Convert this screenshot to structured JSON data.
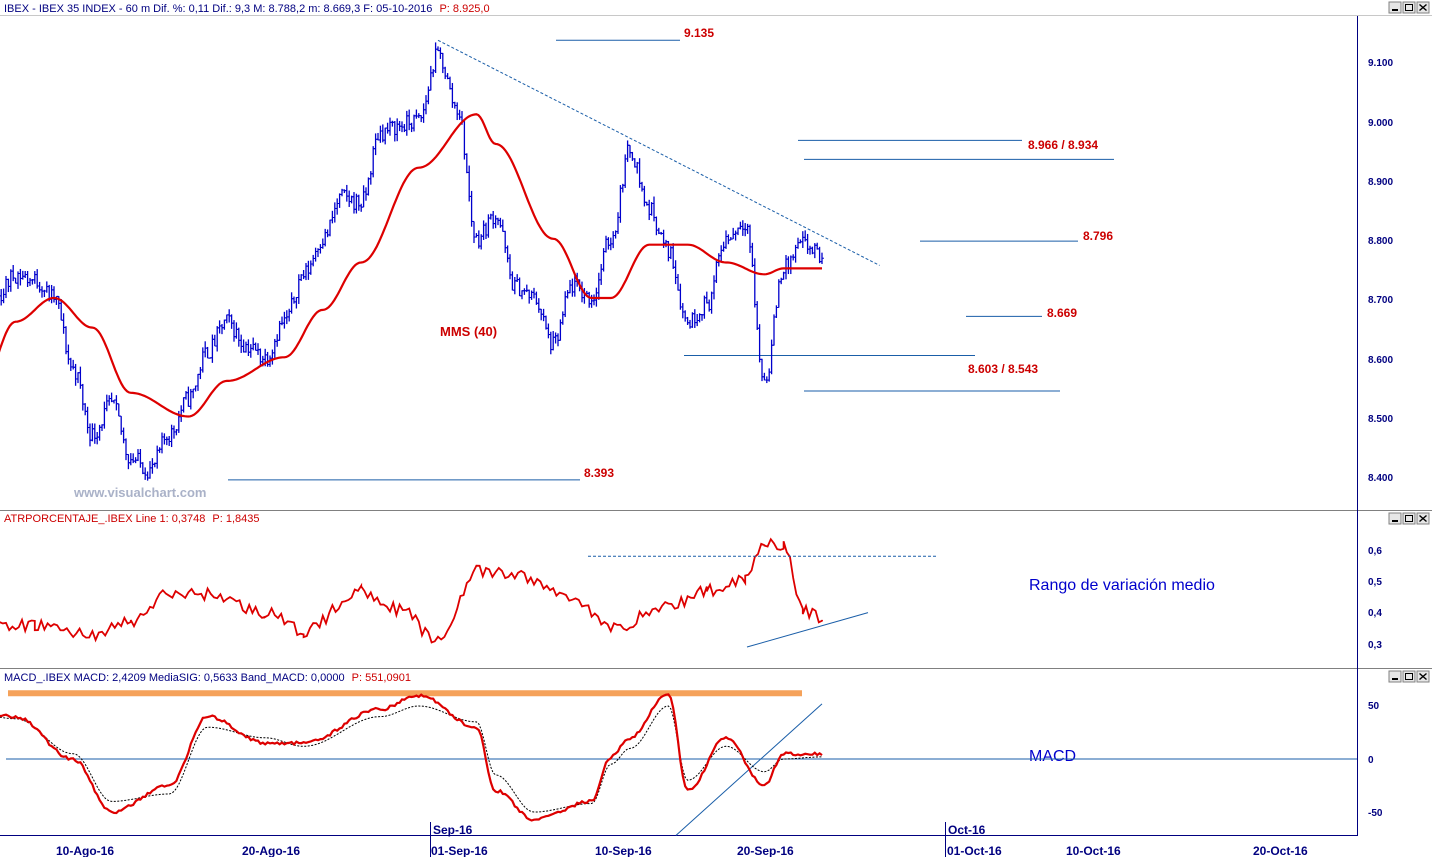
{
  "colors": {
    "price": "#0000cc",
    "mms": "#dd0000",
    "level_line": "#1a5ea8",
    "level_label": "#cc0000",
    "atr": "#dd0000",
    "macd": "#dd0000",
    "macd_signal": "#000000",
    "macd_highlight": "#f5a25a",
    "axis": "#000080"
  },
  "header_main": {
    "prefix": "IBEX - IBEX 35 INDEX - 60 m Dif. %: 0,11 Dif.: 9,3 M: 8.788,2 m: 8.669,3 F: 05-10-2016",
    "last": "P: 8.925,0"
  },
  "header_atr": {
    "prefix": "ATRPORCENTAJE_.IBEX Line 1: 0,3748",
    "last": "P: 1,8435"
  },
  "header_macd": {
    "prefix": "MACD_.IBEX MACD: 2,4209 MediaSIG: 0,5633 Band_MACD: 0,0000",
    "last": "P: 551,0901"
  },
  "watermark": "www.visualchart.com",
  "annotations": {
    "mms": "MMS (40)",
    "atr": "Rango de variación medio",
    "macd": "MACD"
  },
  "x_axis": {
    "labels": [
      "10-Ago-16",
      "20-Ago-16",
      "01-Sep-16",
      "10-Sep-16",
      "20-Sep-16",
      "01-Oct-16",
      "10-Oct-16",
      "20-Oct-16"
    ],
    "month_labels": [
      "Sep-16",
      "Oct-16"
    ]
  },
  "chart_data": [
    {
      "type": "candlestick",
      "title": "IBEX - IBEX 35 INDEX - 60 m",
      "y_ticks": [
        "9.100",
        "9.000",
        "8.900",
        "8.800",
        "8.700",
        "8.600",
        "8.500",
        "8.400"
      ],
      "ylim": [
        8380,
        9155
      ],
      "price_anchors": [
        [
          "2016-08-01",
          8630
        ],
        [
          "2016-08-02",
          8560
        ],
        [
          "2016-08-03",
          8650
        ],
        [
          "2016-08-04",
          8680
        ],
        [
          "2016-08-05",
          8700
        ],
        [
          "2016-08-08",
          8740
        ],
        [
          "2016-08-09",
          8730
        ],
        [
          "2016-08-10",
          8700
        ],
        [
          "2016-08-11",
          8580
        ],
        [
          "2016-08-12",
          8470
        ],
        [
          "2016-08-15",
          8520
        ],
        [
          "2016-08-16",
          8430
        ],
        [
          "2016-08-17",
          8410
        ],
        [
          "2016-08-18",
          8470
        ],
        [
          "2016-08-19",
          8530
        ],
        [
          "2016-08-22",
          8610
        ],
        [
          "2016-08-23",
          8660
        ],
        [
          "2016-08-24",
          8620
        ],
        [
          "2016-08-25",
          8600
        ],
        [
          "2016-08-26",
          8660
        ],
        [
          "2016-08-29",
          8740
        ],
        [
          "2016-08-30",
          8800
        ],
        [
          "2016-08-31",
          8870
        ],
        [
          "2016-09-01",
          8860
        ],
        [
          "2016-09-02",
          8980
        ],
        [
          "2016-09-05",
          8990
        ],
        [
          "2016-09-06",
          9000
        ],
        [
          "2016-09-07",
          9110
        ],
        [
          "2016-09-08",
          9020
        ],
        [
          "2016-09-09",
          8800
        ],
        [
          "2016-09-12",
          8840
        ],
        [
          "2016-09-13",
          8720
        ],
        [
          "2016-09-14",
          8700
        ],
        [
          "2016-09-15",
          8620
        ],
        [
          "2016-09-16",
          8720
        ],
        [
          "2016-09-19",
          8700
        ],
        [
          "2016-09-20",
          8800
        ],
        [
          "2016-09-21",
          8950
        ],
        [
          "2016-09-22",
          8850
        ],
        [
          "2016-09-23",
          8780
        ],
        [
          "2016-09-26",
          8660
        ],
        [
          "2016-09-27",
          8690
        ],
        [
          "2016-09-28",
          8800
        ],
        [
          "2016-09-29",
          8830
        ],
        [
          "2016-09-30",
          8560
        ],
        [
          "2016-10-03",
          8750
        ],
        [
          "2016-10-04",
          8790
        ],
        [
          "2016-10-05",
          8770
        ]
      ],
      "mms": {
        "name": "MMS (40)",
        "anchors": [
          [
            "2016-08-01",
            8390
          ],
          [
            "2016-08-04",
            8530
          ],
          [
            "2016-08-08",
            8660
          ],
          [
            "2016-08-10",
            8700
          ],
          [
            "2016-08-12",
            8650
          ],
          [
            "2016-08-16",
            8540
          ],
          [
            "2016-08-19",
            8500
          ],
          [
            "2016-08-23",
            8560
          ],
          [
            "2016-08-26",
            8600
          ],
          [
            "2016-08-30",
            8680
          ],
          [
            "2016-09-01",
            8760
          ],
          [
            "2016-09-06",
            8920
          ],
          [
            "2016-09-09",
            9010
          ],
          [
            "2016-09-12",
            8960
          ],
          [
            "2016-09-15",
            8800
          ],
          [
            "2016-09-19",
            8700
          ],
          [
            "2016-09-20",
            8700
          ],
          [
            "2016-09-22",
            8790
          ],
          [
            "2016-09-26",
            8790
          ],
          [
            "2016-09-28",
            8760
          ],
          [
            "2016-09-30",
            8740
          ],
          [
            "2016-10-03",
            8750
          ],
          [
            "2016-10-05",
            8750
          ]
        ]
      },
      "levels": [
        {
          "label": "9.135",
          "value": 9135
        },
        {
          "label": "8.966 / 8.934",
          "values": [
            8966,
            8934
          ]
        },
        {
          "label": "8.796",
          "value": 8796
        },
        {
          "label": "8.669",
          "value": 8669
        },
        {
          "label": "8.603 / 8.543",
          "values": [
            8603,
            8543
          ]
        },
        {
          "label": "8.393",
          "value": 8393
        }
      ],
      "trendline": [
        [
          "2016-09-07",
          9135
        ],
        [
          "2016-10-08",
          8755
        ]
      ]
    },
    {
      "type": "line",
      "title": "ATRPORCENTAJE_.IBEX",
      "y_ticks": [
        "0,6",
        "0,5",
        "0,4",
        "0,3"
      ],
      "ylim": [
        0.2,
        0.7
      ],
      "series": [
        {
          "name": "Line 1",
          "anchors": [
            [
              "2016-08-01",
              0.53
            ],
            [
              "2016-08-03",
              0.44
            ],
            [
              "2016-08-05",
              0.35
            ],
            [
              "2016-08-09",
              0.36
            ],
            [
              "2016-08-12",
              0.33
            ],
            [
              "2016-08-16",
              0.37
            ],
            [
              "2016-08-18",
              0.46
            ],
            [
              "2016-08-22",
              0.46
            ],
            [
              "2016-08-25",
              0.4
            ],
            [
              "2016-08-29",
              0.34
            ],
            [
              "2016-09-01",
              0.47
            ],
            [
              "2016-09-05",
              0.41
            ],
            [
              "2016-09-07",
              0.31
            ],
            [
              "2016-09-09",
              0.53
            ],
            [
              "2016-09-13",
              0.52
            ],
            [
              "2016-09-16",
              0.45
            ],
            [
              "2016-09-20",
              0.35
            ],
            [
              "2016-09-23",
              0.42
            ],
            [
              "2016-09-27",
              0.47
            ],
            [
              "2016-09-29",
              0.51
            ],
            [
              "2016-09-30",
              0.63
            ],
            [
              "2016-10-02",
              0.61
            ],
            [
              "2016-10-04",
              0.41
            ],
            [
              "2016-10-05",
              0.38
            ]
          ]
        }
      ],
      "resistance_line": 0.58
    },
    {
      "type": "line",
      "title": "MACD_.IBEX",
      "y_ticks": [
        "50",
        "0",
        "-50"
      ],
      "ylim": [
        -72,
        68
      ],
      "zero_line": 0,
      "series": [
        {
          "name": "MACD",
          "anchors": [
            [
              "2016-08-01",
              58
            ],
            [
              "2016-08-04",
              44
            ],
            [
              "2016-08-08",
              40
            ],
            [
              "2016-08-11",
              0
            ],
            [
              "2016-08-15",
              -50
            ],
            [
              "2016-08-18",
              -25
            ],
            [
              "2016-08-22",
              40
            ],
            [
              "2016-08-25",
              15
            ],
            [
              "2016-08-29",
              15
            ],
            [
              "2016-09-02",
              47
            ],
            [
              "2016-09-06",
              60
            ],
            [
              "2016-09-09",
              30
            ],
            [
              "2016-09-12",
              -30
            ],
            [
              "2016-09-14",
              -57
            ],
            [
              "2016-09-18",
              -40
            ],
            [
              "2016-09-20",
              2
            ],
            [
              "2016-09-21",
              20
            ],
            [
              "2016-09-23",
              62
            ],
            [
              "2016-09-26",
              -30
            ],
            [
              "2016-09-28",
              20
            ],
            [
              "2016-09-30",
              -25
            ],
            [
              "2016-10-02",
              5
            ],
            [
              "2016-10-05",
              5
            ]
          ]
        },
        {
          "name": "MediaSIG",
          "anchors": [
            [
              "2016-08-01",
              45
            ],
            [
              "2016-08-04",
              42
            ],
            [
              "2016-08-08",
              38
            ],
            [
              "2016-08-11",
              5
            ],
            [
              "2016-08-15",
              -40
            ],
            [
              "2016-08-18",
              -33
            ],
            [
              "2016-08-22",
              30
            ],
            [
              "2016-08-25",
              20
            ],
            [
              "2016-08-29",
              12
            ],
            [
              "2016-09-02",
              40
            ],
            [
              "2016-09-06",
              50
            ],
            [
              "2016-09-09",
              35
            ],
            [
              "2016-09-12",
              -15
            ],
            [
              "2016-09-14",
              -50
            ],
            [
              "2016-09-18",
              -42
            ],
            [
              "2016-09-20",
              -5
            ],
            [
              "2016-09-21",
              10
            ],
            [
              "2016-09-23",
              50
            ],
            [
              "2016-09-26",
              -20
            ],
            [
              "2016-09-28",
              12
            ],
            [
              "2016-09-30",
              -12
            ],
            [
              "2016-10-02",
              0
            ],
            [
              "2016-10-05",
              2
            ]
          ]
        }
      ],
      "highlight_level": 62
    }
  ]
}
